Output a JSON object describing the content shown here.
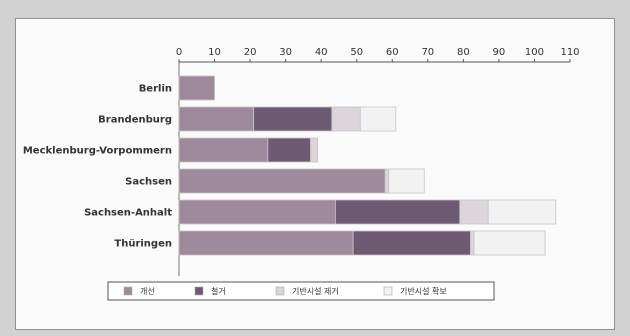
{
  "chart_data": {
    "type": "bar",
    "orientation": "horizontal",
    "stacked": true,
    "categories": [
      "Berlin",
      "Brandenburg",
      "Mecklenburg-Vorpommern",
      "Sachsen",
      "Sachsen-Anhalt",
      "Thüringen"
    ],
    "series": [
      {
        "name": "개선",
        "color": "#9e8a9c",
        "values": [
          10,
          21,
          25,
          58,
          44,
          49
        ]
      },
      {
        "name": "철거",
        "color": "#6f5a73",
        "values": [
          0,
          22,
          12,
          0,
          35,
          33
        ]
      },
      {
        "name": "기반시설 제거",
        "color": "#dcd6dc",
        "values": [
          0,
          8,
          2,
          1,
          8,
          1
        ]
      },
      {
        "name": "기반시설 확보",
        "color": "#f2f2f2",
        "values": [
          0,
          10,
          0,
          10,
          19,
          20
        ]
      }
    ],
    "xlim": [
      0,
      110
    ],
    "xticks": [
      0,
      10,
      20,
      30,
      40,
      50,
      60,
      70,
      80,
      90,
      100,
      110
    ],
    "x_axis_position": "top",
    "grid": false,
    "legend_position": "bottom"
  }
}
